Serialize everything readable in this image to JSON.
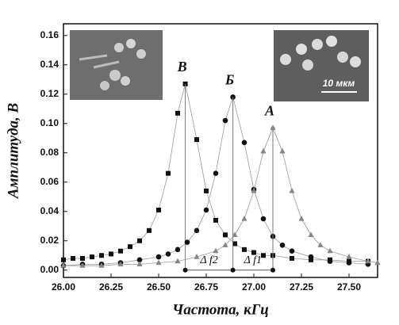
{
  "chart_data": {
    "type": "scatter",
    "xlabel": "Частота, кГц",
    "ylabel": "Амплитуда, В",
    "xlim": [
      26.0,
      27.65
    ],
    "ylim": [
      -0.005,
      0.168
    ],
    "xticks": [
      {
        "value": 26.0,
        "label": "26.00"
      },
      26.25,
      {
        "value": 26.5,
        "label": "26.50"
      },
      26.75,
      {
        "value": 27.0,
        "label": "27.00"
      },
      27.25,
      {
        "value": 27.5,
        "label": "27.50"
      }
    ],
    "yticks": [
      {
        "value": 0,
        "label": "0.00"
      },
      0.02,
      0.04,
      0.06,
      0.08,
      {
        "value": 0.1,
        "label": "0.10"
      },
      0.12,
      0.14,
      0.16
    ],
    "series": [
      {
        "name": "В",
        "color": "#111111",
        "marker": "square",
        "x": [
          26.0,
          26.05,
          26.1,
          26.15,
          26.2,
          26.25,
          26.3,
          26.35,
          26.4,
          26.45,
          26.5,
          26.55,
          26.6,
          26.64,
          26.7,
          26.75,
          26.8,
          26.85,
          26.9,
          26.95,
          27.0,
          27.05,
          27.1,
          27.2,
          27.3,
          27.4,
          27.5,
          27.6
        ],
        "values": [
          0.007,
          0.008,
          0.008,
          0.009,
          0.01,
          0.011,
          0.013,
          0.016,
          0.02,
          0.027,
          0.041,
          0.066,
          0.107,
          0.127,
          0.089,
          0.054,
          0.034,
          0.024,
          0.018,
          0.014,
          0.012,
          0.01,
          0.01,
          0.008,
          0.007,
          0.007,
          0.006,
          0.006
        ]
      },
      {
        "name": "Б",
        "color": "#111111",
        "marker": "circle",
        "x": [
          26.0,
          26.1,
          26.2,
          26.3,
          26.4,
          26.5,
          26.55,
          26.6,
          26.65,
          26.7,
          26.75,
          26.8,
          26.85,
          26.89,
          26.95,
          27.0,
          27.05,
          27.1,
          27.15,
          27.2,
          27.3,
          27.4,
          27.5,
          27.6
        ],
        "values": [
          0.003,
          0.004,
          0.004,
          0.005,
          0.007,
          0.009,
          0.011,
          0.014,
          0.019,
          0.027,
          0.041,
          0.066,
          0.102,
          0.118,
          0.087,
          0.055,
          0.035,
          0.023,
          0.017,
          0.013,
          0.009,
          0.006,
          0.005,
          0.004
        ]
      },
      {
        "name": "А",
        "color": "#858585",
        "marker": "triangle",
        "x": [
          26.0,
          26.1,
          26.2,
          26.3,
          26.4,
          26.5,
          26.6,
          26.7,
          26.8,
          26.85,
          26.9,
          26.95,
          27.0,
          27.05,
          27.1,
          27.15,
          27.2,
          27.25,
          27.3,
          27.35,
          27.4,
          27.5,
          27.6,
          27.65
        ],
        "values": [
          0.003,
          0.003,
          0.003,
          0.004,
          0.004,
          0.005,
          0.006,
          0.009,
          0.013,
          0.017,
          0.024,
          0.035,
          0.054,
          0.081,
          0.097,
          0.081,
          0.054,
          0.035,
          0.024,
          0.017,
          0.013,
          0.009,
          0.006,
          0.005
        ]
      }
    ],
    "annotations": [
      "Δ f2",
      "Δ f1"
    ],
    "inset_scale_label": "10 мкм"
  }
}
